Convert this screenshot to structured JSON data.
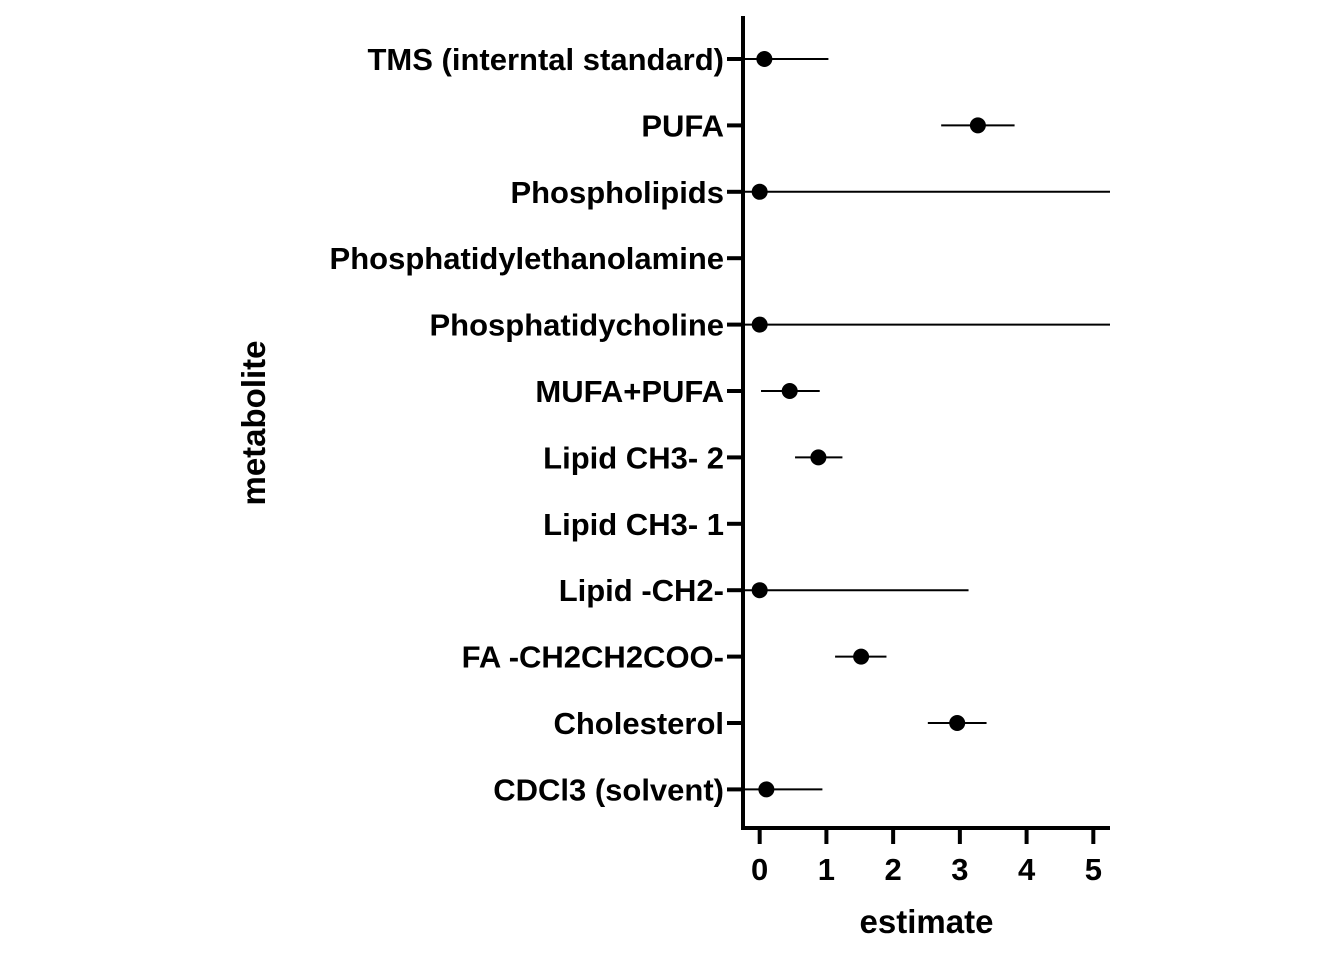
{
  "chart_data": {
    "type": "scatter",
    "title": "",
    "xlabel": "estimate",
    "ylabel": "metabolite",
    "xlim": [
      -0.25,
      5.25
    ],
    "x_ticks": [
      "0",
      "1",
      "2",
      "3",
      "4",
      "5"
    ],
    "grid": false,
    "legend": "none",
    "point_color": "#000000",
    "categories": [
      "TMS (interntal standard)",
      "PUFA",
      "Phospholipids",
      "Phosphatidylethanolamine",
      "Phosphatidycholine",
      "MUFA+PUFA",
      "Lipid CH3- 2",
      "Lipid CH3- 1",
      "Lipid -CH2-",
      "FA -CH2CH2COO-",
      "Cholesterol",
      "CDCl3 (solvent)"
    ],
    "points": [
      {
        "metabolite": "TMS (interntal standard)",
        "estimate": 0.07,
        "low": -0.25,
        "high": 1.03
      },
      {
        "metabolite": "PUFA",
        "estimate": 3.27,
        "low": 2.72,
        "high": 3.82
      },
      {
        "metabolite": "Phospholipids",
        "estimate": 0.0,
        "low": -0.25,
        "high": 5.25
      },
      {
        "metabolite": "Phosphatidylethanolamine",
        "estimate": null,
        "low": null,
        "high": null
      },
      {
        "metabolite": "Phosphatidycholine",
        "estimate": 0.0,
        "low": -0.25,
        "high": 5.25
      },
      {
        "metabolite": "MUFA+PUFA",
        "estimate": 0.45,
        "low": 0.02,
        "high": 0.9
      },
      {
        "metabolite": "Lipid CH3- 2",
        "estimate": 0.88,
        "low": 0.53,
        "high": 1.24
      },
      {
        "metabolite": "Lipid CH3- 1",
        "estimate": null,
        "low": null,
        "high": null
      },
      {
        "metabolite": "Lipid -CH2-",
        "estimate": 0.0,
        "low": -0.25,
        "high": 3.13
      },
      {
        "metabolite": "FA -CH2CH2COO-",
        "estimate": 1.52,
        "low": 1.13,
        "high": 1.9
      },
      {
        "metabolite": "Cholesterol",
        "estimate": 2.96,
        "low": 2.52,
        "high": 3.4
      },
      {
        "metabolite": "CDCl3 (solvent)",
        "estimate": 0.1,
        "low": -0.25,
        "high": 0.94
      }
    ]
  }
}
